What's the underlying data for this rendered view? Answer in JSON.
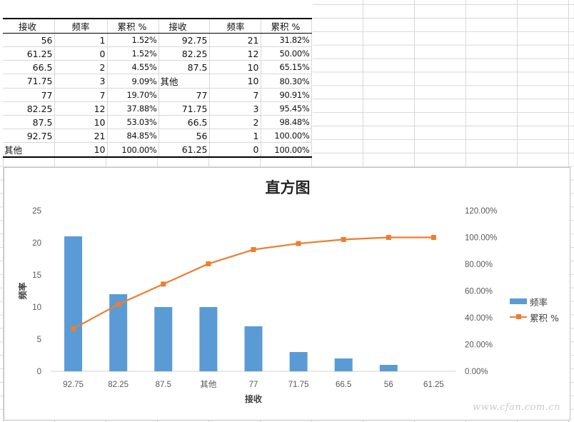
{
  "table": {
    "headers": [
      "接收",
      "频率",
      "累积 %",
      "接收",
      "频率",
      "累积 %"
    ],
    "rows": [
      [
        "56",
        "1",
        "1.52%",
        "92.75",
        "21",
        "31.82%"
      ],
      [
        "61.25",
        "0",
        "1.52%",
        "82.25",
        "12",
        "50.00%"
      ],
      [
        "66.5",
        "2",
        "4.55%",
        "87.5",
        "10",
        "65.15%"
      ],
      [
        "71.75",
        "3",
        "9.09%",
        "其他",
        "10",
        "80.30%"
      ],
      [
        "77",
        "7",
        "19.70%",
        "77",
        "7",
        "90.91%"
      ],
      [
        "82.25",
        "12",
        "37.88%",
        "71.75",
        "3",
        "95.45%"
      ],
      [
        "87.5",
        "10",
        "53.03%",
        "66.5",
        "2",
        "98.48%"
      ],
      [
        "92.75",
        "21",
        "84.85%",
        "56",
        "1",
        "100.00%"
      ],
      [
        "其他",
        "10",
        "100.00%",
        "61.25",
        "0",
        "100.00%"
      ]
    ]
  },
  "chart_data": {
    "type": "bar",
    "title": "直方图",
    "xlabel": "接收",
    "ylabel": "频率",
    "categories": [
      "92.75",
      "82.25",
      "87.5",
      "其他",
      "77",
      "71.75",
      "66.5",
      "56",
      "61.25"
    ],
    "series": [
      {
        "name": "频率",
        "type": "bar",
        "axis": "left",
        "color": "#5b9bd5",
        "values": [
          21,
          12,
          10,
          10,
          7,
          3,
          2,
          1,
          0
        ]
      },
      {
        "name": "累积 %",
        "type": "line",
        "axis": "right",
        "color": "#ed7d31",
        "values": [
          31.82,
          50.0,
          65.15,
          80.3,
          90.91,
          95.45,
          98.48,
          100.0,
          100.0
        ]
      }
    ],
    "ylim": [
      0,
      25
    ],
    "y_ticks": [
      "0",
      "5",
      "10",
      "15",
      "20",
      "25"
    ],
    "y2lim": [
      0,
      120
    ],
    "y2_ticks": [
      "0.00%",
      "20.00%",
      "40.00%",
      "60.00%",
      "80.00%",
      "100.00%",
      "120.00%"
    ],
    "grid": false,
    "legend": "right"
  },
  "watermark": "www.cfan.com.cn"
}
